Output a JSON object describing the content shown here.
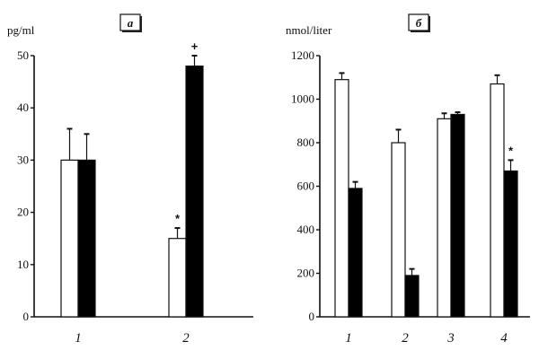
{
  "chart_data": [
    {
      "type": "bar",
      "panel_label": "a",
      "ylabel": "pg/ml",
      "ylim": [
        0,
        50
      ],
      "yticks": [
        0,
        10,
        20,
        30,
        40,
        50
      ],
      "categories": [
        "1",
        "2"
      ],
      "series": [
        {
          "color": "#ffffff",
          "values": [
            30,
            15
          ],
          "errors": [
            6,
            2
          ]
        },
        {
          "color": "#000000",
          "values": [
            30,
            48
          ],
          "errors": [
            5,
            2
          ]
        }
      ],
      "annotations": [
        {
          "category": 0,
          "series": 0,
          "text": ""
        },
        {
          "category": 0,
          "series": 1,
          "text": ""
        },
        {
          "category": 1,
          "series": 0,
          "text": "*"
        },
        {
          "category": 1,
          "series": 1,
          "text": "+"
        }
      ],
      "grid": false
    },
    {
      "type": "bar",
      "panel_label": "б",
      "ylabel": "nmol/liter",
      "ylim": [
        0,
        1200
      ],
      "yticks": [
        0,
        200,
        400,
        600,
        800,
        1000,
        1200
      ],
      "categories": [
        "1",
        "2",
        "3",
        "4"
      ],
      "series": [
        {
          "color": "#ffffff",
          "values": [
            1090,
            800,
            910,
            1070
          ],
          "errors": [
            30,
            60,
            25,
            40
          ]
        },
        {
          "color": "#000000",
          "values": [
            590,
            190,
            930,
            670
          ],
          "errors": [
            30,
            30,
            10,
            50
          ]
        }
      ],
      "annotations": [
        {
          "category": 3,
          "series": 1,
          "text": "*"
        }
      ],
      "grid": false
    }
  ]
}
